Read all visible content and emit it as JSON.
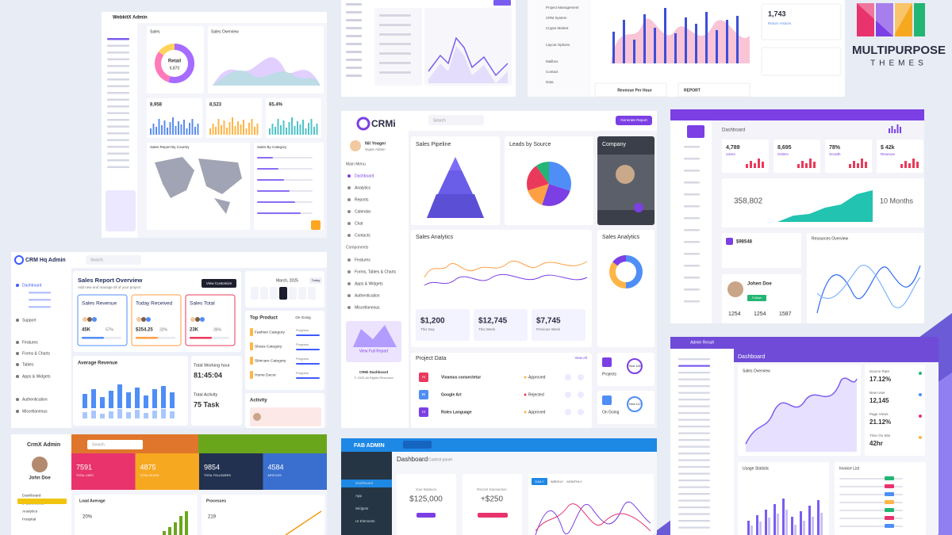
{
  "brand": {
    "name": "MULTIPURPOSE",
    "tagline": "THEMES"
  },
  "webkitx": {
    "title": "WebkitX Admin",
    "sales": "Sales",
    "retail": "Retail",
    "retail_value": "6,870",
    "overview": "Sales Overview",
    "stats": [
      "8,958",
      "8,523",
      "65.4%"
    ],
    "map_title": "Sales Report By Country",
    "category_title": "Sales By Category"
  },
  "topmid": {
    "menu": [
      "Project Management",
      "CRM System",
      "Crypto Market",
      "Layout Options",
      "Mailbox",
      "Contact",
      "Data"
    ],
    "visitors": "1,743",
    "visitors_label": "Return Visitors",
    "revenue": "Revenue Per Hour",
    "report": "REPORT"
  },
  "crmi": {
    "logo": "CRMi",
    "user": "Nil Yeager",
    "role": "Super Admin",
    "search": "Search",
    "button": "Generate Report",
    "menu_title": "Main Menu",
    "menu": [
      "Dashboard",
      "Analytics",
      "Reports",
      "Calendar",
      "Chat",
      "Contacts"
    ],
    "components_title": "Components",
    "components": [
      "Features",
      "Forms, Tables & Charts",
      "Apps & Widgets",
      "Authentication",
      "Miscellaneous"
    ],
    "promo": "View Full Report",
    "footer": "CRMi Dashboard",
    "copyright": "© 2025 All Rights Reserved",
    "pipeline": "Sales Pipeline",
    "leads": "Leads by Source",
    "company": "Company",
    "analytics": "Sales Analytics",
    "analytics2": "Sales Analytics",
    "kpis": [
      {
        "value": "$1,200",
        "label": "This Day"
      },
      {
        "value": "$12,745",
        "label": "This Week"
      },
      {
        "value": "$7,745",
        "label": "Previous Week"
      }
    ],
    "project_title": "Project Data",
    "view_all": "View All",
    "projects": [
      {
        "code": "AI",
        "name": "Vivamus consectetur",
        "status": "Approved"
      },
      {
        "code": "BI",
        "name": "Google Art",
        "status": "Rejected"
      },
      {
        "code": "CI",
        "name": "Roles Language",
        "status": "Approved"
      }
    ],
    "side_stats": [
      {
        "label": "Projects",
        "value": "Total 108"
      },
      {
        "label": "On Going",
        "value": "Total 112"
      }
    ]
  },
  "purple": {
    "title": "Dashboard",
    "stats": [
      {
        "value": "4,789",
        "label": "Users"
      },
      {
        "value": "8,695",
        "label": "Orders"
      },
      {
        "value": "78%",
        "label": "Growth"
      },
      {
        "value": "$ 42k",
        "label": "Revenue"
      }
    ],
    "big": "358,802",
    "months": "10 Months",
    "earn": "$98548",
    "user": "Johen Doe",
    "follow": "Follow",
    "resources": "Resources Overview",
    "counts": [
      "1254",
      "1254",
      "1587"
    ]
  },
  "crmhq": {
    "title": "CRM Hq Admin",
    "search": "Search",
    "menu": [
      "Dashboard",
      "Support",
      "Features",
      "Forms & Charts",
      "Tables",
      "Apps & Widgets",
      "Authentication",
      "Miscellaneous"
    ],
    "report_title": "Sales Report Overview",
    "report_sub": "Add new and manage all of your project",
    "button": "View Customize",
    "cards": [
      {
        "title": "Sales Revenue",
        "value": "45K",
        "pct": "57%"
      },
      {
        "title": "Today Received",
        "value": "$254.25",
        "pct": "32%"
      },
      {
        "title": "Sales Total",
        "value": "23K",
        "pct": "36%"
      }
    ],
    "calendar": "March, 2025",
    "today": "Today",
    "avg": "Average Revenue",
    "working_title": "Total Working hour",
    "working": "81:45:04",
    "activity_title": "Total Activity",
    "activity": "75 Task",
    "top_title": "Top Product",
    "ongoing": "On Going",
    "products": [
      "Fashion Category",
      "Shoes Category",
      "Skincare Category",
      "Home Decor"
    ],
    "progress": "Progress",
    "activity_panel": "Activity"
  },
  "crmx": {
    "title": "CrmX Admin",
    "user": "John Doe",
    "search": "Search",
    "menu": [
      "Dashboard",
      "e-Commerce",
      "Analytics",
      "Hospital"
    ],
    "tiles": [
      {
        "value": "7591",
        "label": "TOTAL LIKES"
      },
      {
        "value": "4875",
        "label": "TOTAL BLOGS"
      },
      {
        "value": "9854",
        "label": "TOTAL FOLLOWERS"
      },
      {
        "value": "4584",
        "label": "ARTICLES"
      }
    ],
    "load": "Load Average",
    "load_value": "20%",
    "processes": "Processes",
    "processes_value": "219"
  },
  "fab": {
    "title": "FAB ADMIN",
    "dashboard": "Dashboard",
    "sub": "Control panel",
    "menu": [
      "Dashboard",
      "App",
      "Widgets",
      "UI Elements"
    ],
    "balance_label": "Your Balance",
    "balance": "$125,000",
    "recent_label": "Recent transaction",
    "recent": "+$250",
    "tabs": [
      "DAILY",
      "WEEKLY",
      "MONTHLY"
    ]
  },
  "result": {
    "title": "Admin Result",
    "dashboard": "Dashboard",
    "overview": "Sales Overview",
    "stats": [
      {
        "label": "Source Rate",
        "value": "17.12%"
      },
      {
        "label": "New User",
        "value": "12,145"
      },
      {
        "label": "Page Views",
        "value": "21.12%"
      },
      {
        "label": "Time On Site",
        "value": "42hr"
      }
    ],
    "usage": "Usage Statistic",
    "invoice": "Invoice List"
  }
}
